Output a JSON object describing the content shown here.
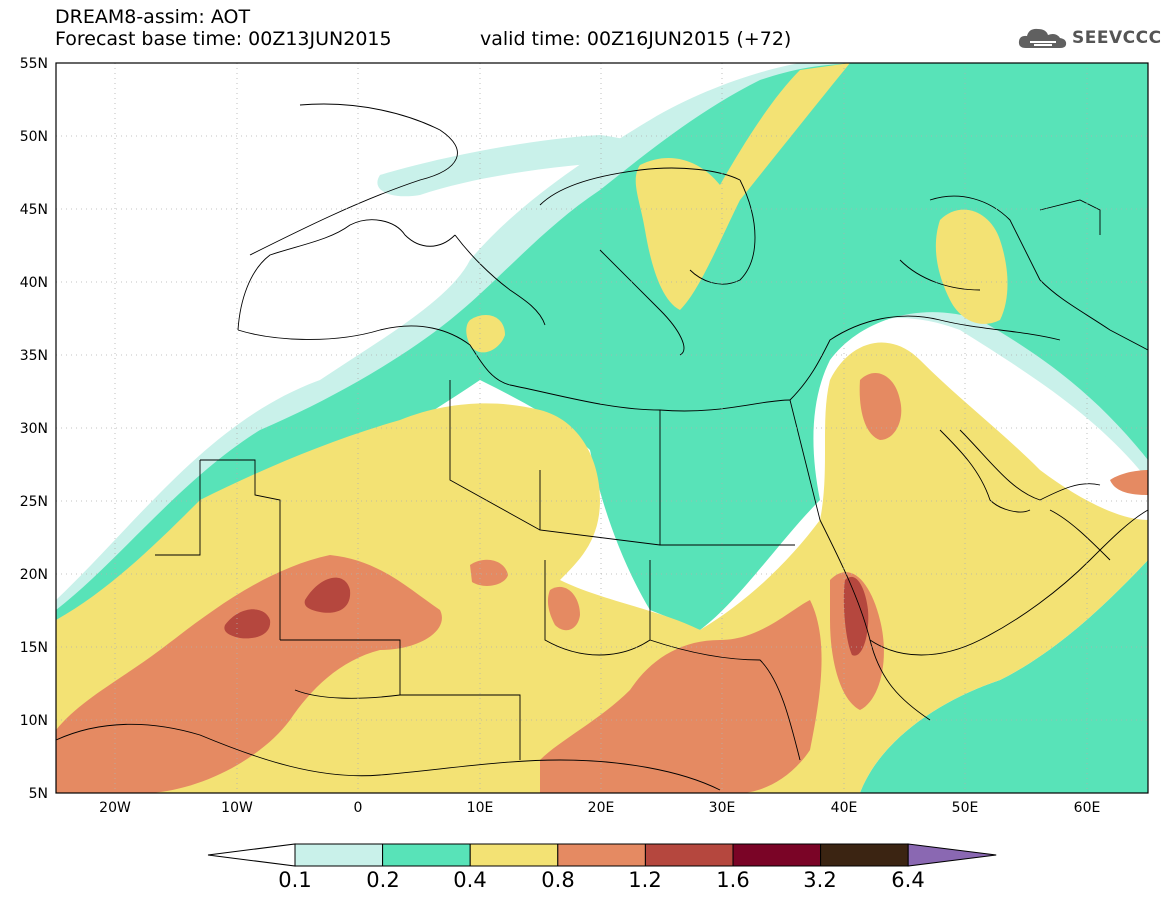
{
  "header": {
    "title_line1": "DREAM8-assim: AOT",
    "title_line2": "Forecast base time: 00Z13JUN2015",
    "title_line3": "valid time: 00Z16JUN2015 (+72)"
  },
  "logo": {
    "text": "SEEVCCC",
    "icon": "cloud-icon"
  },
  "axes": {
    "lat_labels": [
      "55N",
      "50N",
      "45N",
      "40N",
      "35N",
      "30N",
      "25N",
      "20N",
      "15N",
      "10N",
      "5N"
    ],
    "lon_labels": [
      "20W",
      "10W",
      "0",
      "10E",
      "20E",
      "30E",
      "40E",
      "50E",
      "60E"
    ]
  },
  "colorbar": {
    "labels": [
      "0.1",
      "0.2",
      "0.4",
      "0.8",
      "1.2",
      "1.6",
      "3.2",
      "6.4"
    ],
    "colors": [
      "#ffffff",
      "#c9f1ea",
      "#58e3b8",
      "#f3e274",
      "#e58a62",
      "#b5473e",
      "#7a0426",
      "#3b2412",
      "#8a68b2"
    ]
  }
}
